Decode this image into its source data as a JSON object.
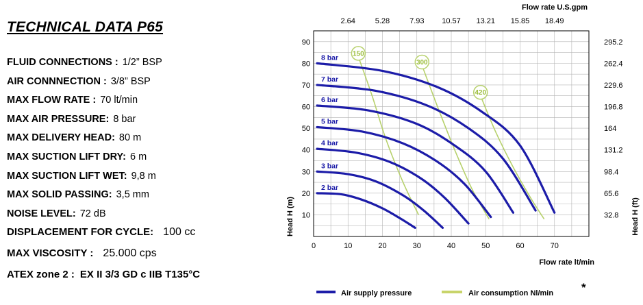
{
  "title": "TECHNICAL DATA  P65",
  "specs": [
    {
      "label": "FLUID CONNECTIONS :",
      "value": "1/2” BSP"
    },
    {
      "label": "AIR CONNNECTION  :",
      "value": "3/8” BSP"
    },
    {
      "label": "MAX FLOW RATE :",
      "value": "70 lt/min"
    },
    {
      "label": "MAX AIR PRESSURE:",
      "value": "8 bar"
    },
    {
      "label": "MAX DELIVERY HEAD:",
      "value": "80 m"
    },
    {
      "label": "MAX SUCTION LIFT DRY:",
      "value": "6 m"
    },
    {
      "label": "MAX SUCTION LIFT WET:",
      "value": "9,8 m"
    },
    {
      "label": "MAX SOLID PASSING:",
      "value": "3,5 mm"
    },
    {
      "label": "NOISE LEVEL:",
      "value": "72 dB"
    },
    {
      "label": "DISPLACEMENT FOR  CYCLE:",
      "value": "100 cc"
    },
    {
      "label": "MAX VISCOSITY :",
      "value": "25.000 cps"
    },
    {
      "label": "ATEX zone 2 :",
      "value": "EX II 3/3 GD c IIB  T135°C"
    }
  ],
  "chart_data": {
    "type": "line",
    "xlabel": "Flow rate  lt/min",
    "ylabel": "Head H (m)",
    "xlim": [
      0,
      80
    ],
    "ylim": [
      0,
      95
    ],
    "x_ticks": [
      "0",
      "10",
      "20",
      "30",
      "40",
      "50",
      "60",
      "70"
    ],
    "y_ticks": [
      "10",
      "20",
      "30",
      "40",
      "50",
      "60",
      "70",
      "80",
      "90"
    ],
    "grid": true,
    "top_axis": {
      "label": "Flow rate U.S.gpm",
      "ticks": [
        "2.64",
        "5.28",
        "7.93",
        "10.57",
        "13.21",
        "15.85",
        "18.49"
      ]
    },
    "right_axis": {
      "label": "Head H (ft)",
      "ticks": [
        "32.8",
        "65.6",
        "98.4",
        "131.2",
        "164",
        "196.8",
        "229.6",
        "262.4",
        "295.2"
      ]
    },
    "series": [
      {
        "name": "2 bar",
        "x": [
          1,
          8,
          14,
          20,
          25,
          29.5
        ],
        "y": [
          20,
          19.5,
          17,
          13,
          8.5,
          4
        ]
      },
      {
        "name": "3 bar",
        "x": [
          1,
          10,
          18,
          26,
          32,
          37.5
        ],
        "y": [
          30,
          28.8,
          25.5,
          19,
          12,
          4
        ]
      },
      {
        "name": "4 bar",
        "x": [
          1,
          12,
          22,
          31,
          38,
          45
        ],
        "y": [
          40.5,
          38.8,
          34.5,
          27,
          18,
          6
        ]
      },
      {
        "name": "5 bar",
        "x": [
          1,
          14,
          26,
          36,
          44,
          51.5
        ],
        "y": [
          50.5,
          48.5,
          43,
          34.5,
          24,
          9
        ]
      },
      {
        "name": "6 bar",
        "x": [
          1,
          16,
          30,
          41,
          50,
          58
        ],
        "y": [
          60.5,
          58.2,
          52,
          42,
          30,
          11
        ]
      },
      {
        "name": "7 bar",
        "x": [
          1,
          18,
          33,
          45,
          55,
          64.5
        ],
        "y": [
          70,
          67.3,
          60.5,
          50,
          36,
          12
        ]
      },
      {
        "name": "8 bar",
        "x": [
          1,
          20,
          36,
          49,
          60,
          70
        ],
        "y": [
          80,
          76.5,
          69,
          57.5,
          42,
          11
        ]
      }
    ],
    "air_consumption": [
      {
        "name": "150",
        "x": [
          13,
          17,
          21,
          26,
          30.5
        ],
        "y": [
          83,
          65,
          45,
          25,
          10
        ]
      },
      {
        "name": "300",
        "x": [
          31.5,
          36,
          41,
          46,
          51
        ],
        "y": [
          79,
          60,
          40,
          22,
          8
        ]
      },
      {
        "name": "420",
        "x": [
          48.5,
          53,
          58,
          63,
          67
        ],
        "y": [
          65,
          48,
          32,
          18,
          8
        ]
      }
    ],
    "legend": [
      {
        "label": "Air supply pressure",
        "color": "#1c1ca8"
      },
      {
        "label": "Air consumption  Nl/min",
        "color": "#c8d46a"
      }
    ],
    "note": "*",
    "colors": {
      "pressure": "#1c1ca8",
      "consumption": "#b7d16c",
      "grid": "#b4b4b4"
    }
  }
}
